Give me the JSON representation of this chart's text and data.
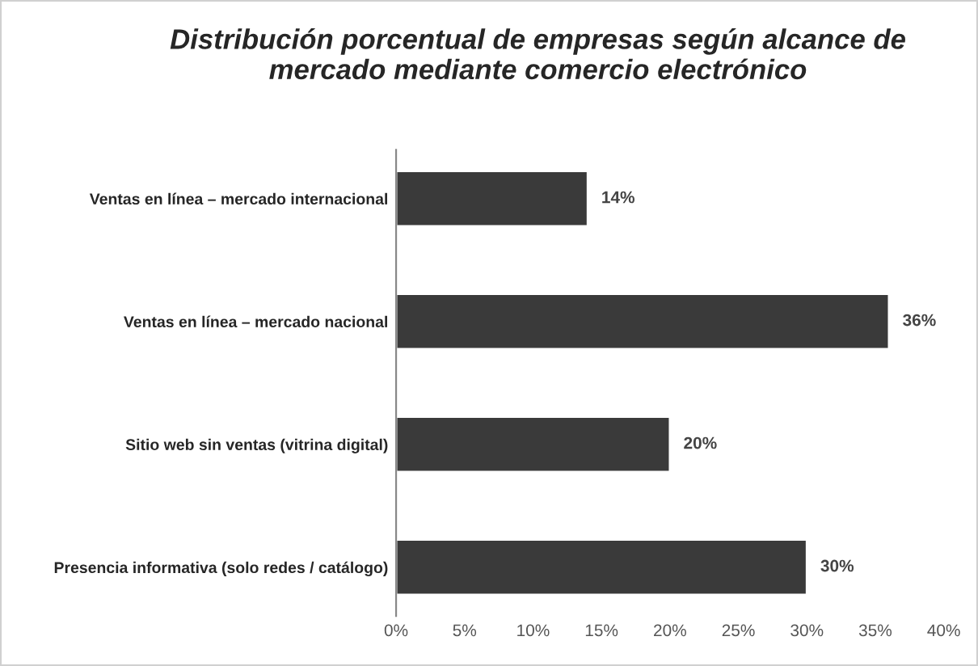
{
  "chart_data": {
    "type": "bar",
    "orientation": "horizontal",
    "title": "Distribución porcentual de empresas según alcance de\nmercado mediante comercio electrónico",
    "categories": [
      "Ventas en línea – mercado internacional",
      "Ventas en línea – mercado nacional",
      "Sitio web sin ventas (vitrina digital)",
      "Presencia informativa (solo redes / catálogo)"
    ],
    "values": [
      14,
      36,
      20,
      30
    ],
    "value_labels": [
      "14%",
      "36%",
      "20%",
      "30%"
    ],
    "color": "#3a3a3a",
    "xlim": [
      0,
      40
    ],
    "xticks": [
      {
        "value": 0,
        "label": "0%"
      },
      {
        "value": 5,
        "label": "5%"
      },
      {
        "value": 10,
        "label": "10%"
      },
      {
        "value": 15,
        "label": "15%"
      },
      {
        "value": 20,
        "label": "20%"
      },
      {
        "value": 25,
        "label": "25%"
      },
      {
        "value": 30,
        "label": "30%"
      },
      {
        "value": 35,
        "label": "35%"
      },
      {
        "value": 40,
        "label": "40%"
      }
    ],
    "grid": false
  }
}
